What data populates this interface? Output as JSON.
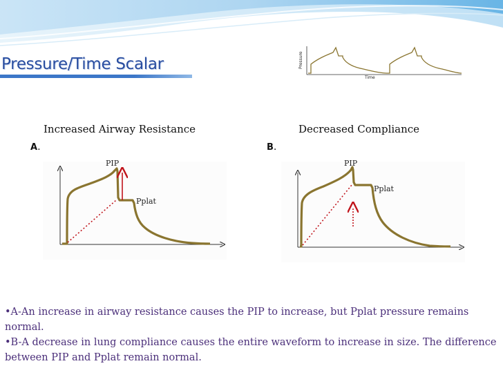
{
  "title": "Pressure/Time Scalar",
  "thumbnail": {
    "y_axis_label": "Pressure",
    "x_axis_label": "Time"
  },
  "panels": [
    {
      "heading": "Increased Airway Resistance",
      "letter": "A",
      "letter_suffix": ".",
      "pip_label": "PIP",
      "pplat_label": "Pplat"
    },
    {
      "heading": "Decreased Compliance",
      "letter": "B",
      "letter_suffix": ".",
      "pip_label": "PIP",
      "pplat_label": "Pplat"
    }
  ],
  "notes": [
    "•A-An increase in airway resistance causes the PIP to increase, but Pplat pressure remains normal.",
    "•B-A decrease in lung compliance causes the entire waveform to increase in size. The difference between PIP and Pplat remain normal."
  ],
  "colors": {
    "waveform": "#8a7530",
    "arrow_red": "#c0141b",
    "title_blue": "#2a4ea0",
    "text_purple": "#4b2f7a"
  }
}
